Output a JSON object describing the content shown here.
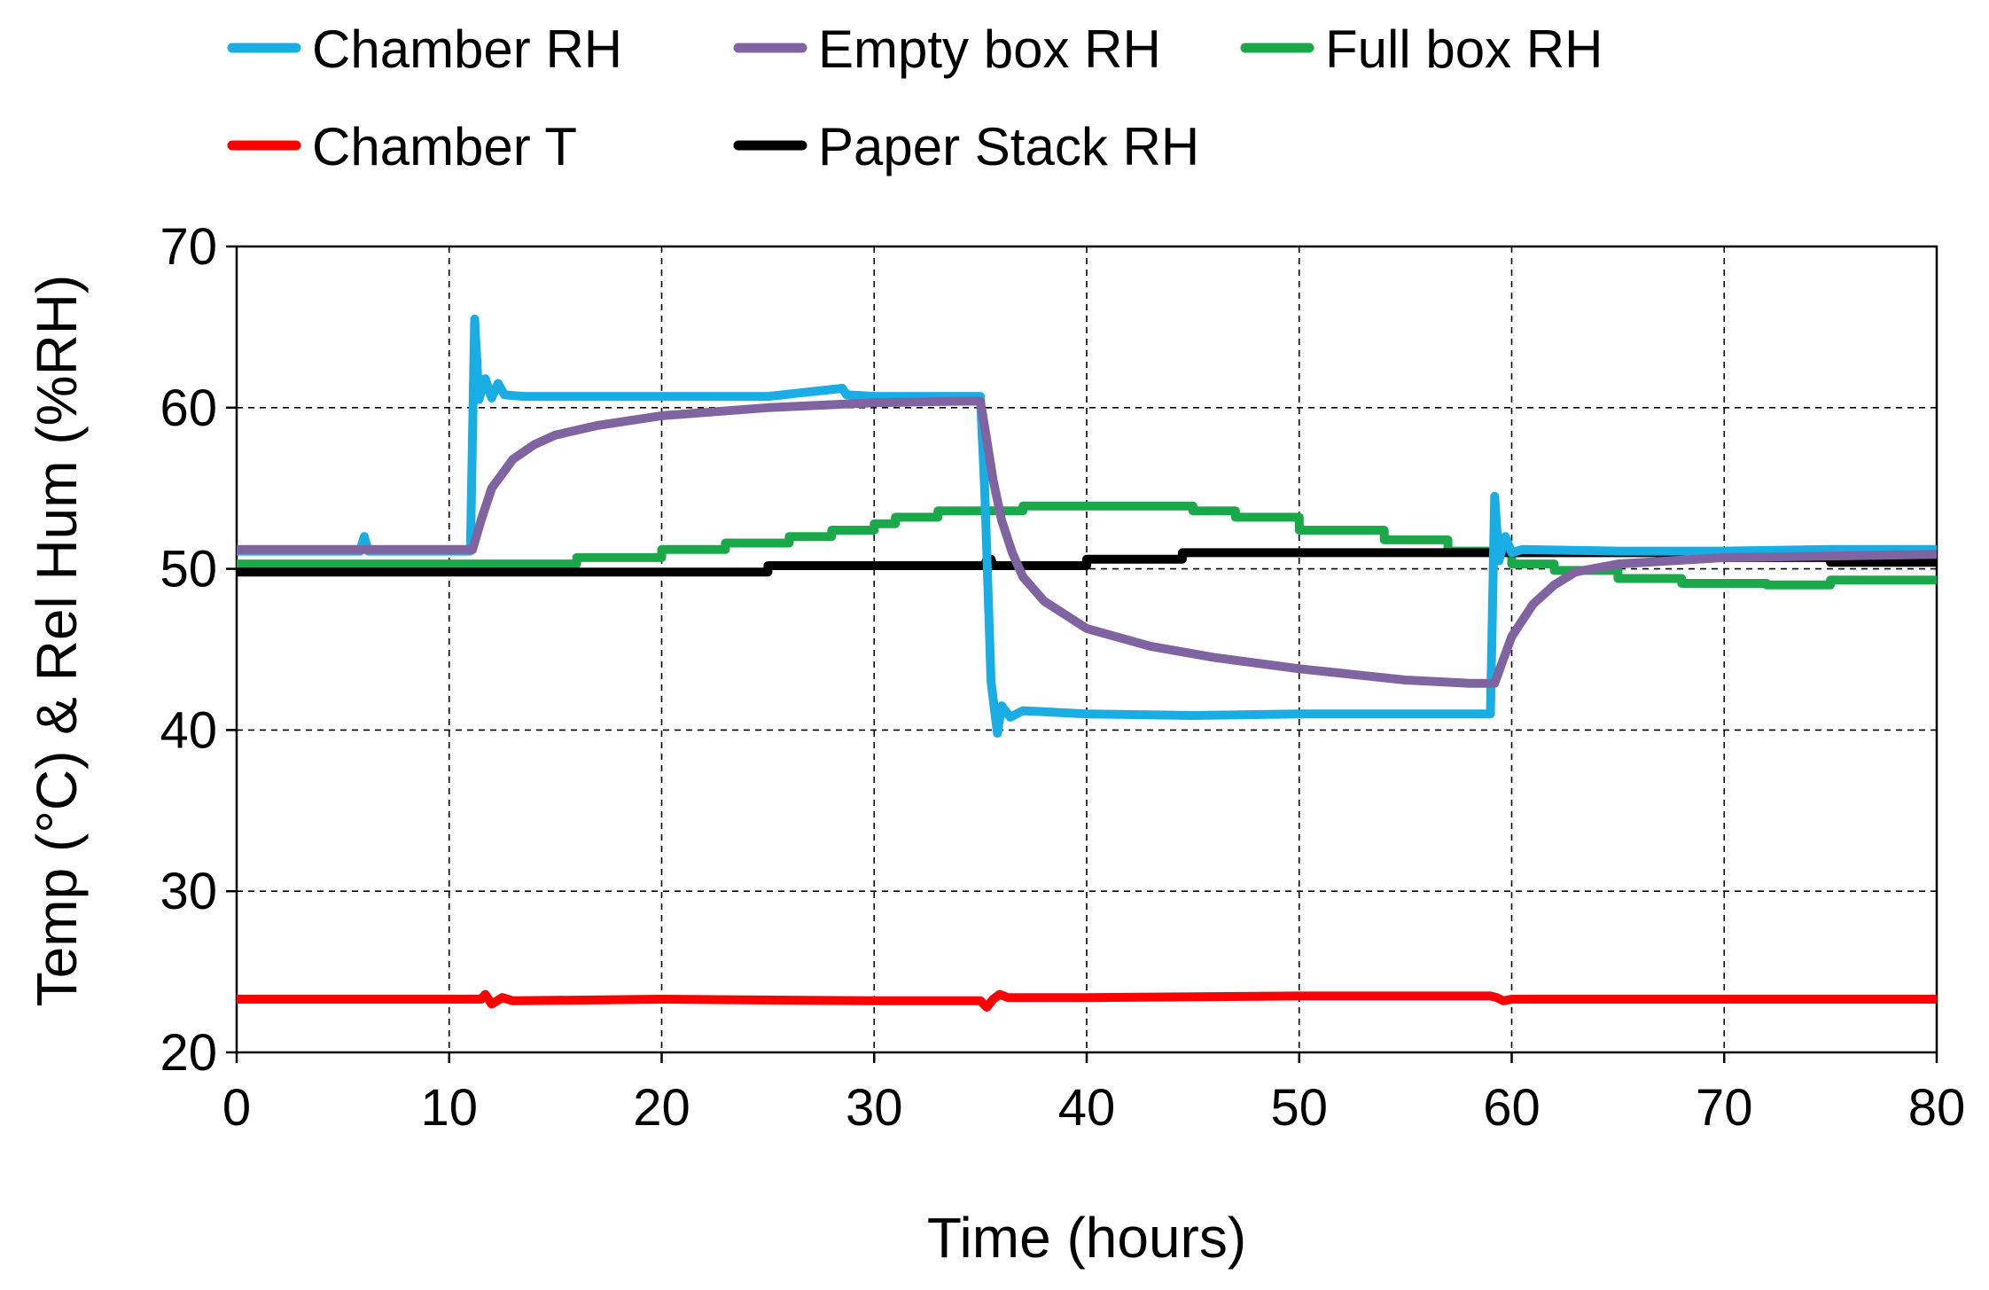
{
  "chart_data": {
    "type": "line",
    "xlabel": "Time (hours)",
    "ylabel": "Temp (°C) & Rel Hum (%RH)",
    "xlim": [
      0,
      80
    ],
    "ylim": [
      20,
      70
    ],
    "xticks": [
      0,
      10,
      20,
      30,
      40,
      50,
      60,
      70,
      80
    ],
    "yticks": [
      20,
      30,
      40,
      50,
      60,
      70
    ],
    "grid": "dashed, major x and y",
    "legend_position": "top",
    "series": [
      {
        "name": "Chamber RH",
        "color": "#1AADE4",
        "x": [
          0,
          5.8,
          6.0,
          6.2,
          11.0,
          11.2,
          11.4,
          11.7,
          12.0,
          12.3,
          12.6,
          13.5,
          20,
          25,
          28.5,
          28.7,
          30,
          35.0,
          35.2,
          35.5,
          35.8,
          36.0,
          36.4,
          37.0,
          40,
          45,
          50,
          55,
          59.0,
          59.2,
          59.4,
          59.7,
          60.0,
          60.5,
          65,
          70,
          75,
          80
        ],
        "y": [
          51.1,
          51.1,
          52.0,
          51.1,
          51.1,
          65.5,
          60.5,
          61.8,
          60.6,
          61.5,
          60.8,
          60.7,
          60.7,
          60.7,
          61.2,
          60.8,
          60.7,
          60.7,
          55.0,
          43.0,
          39.8,
          41.5,
          40.8,
          41.2,
          41.0,
          40.9,
          41.0,
          41.0,
          41.0,
          54.5,
          50.5,
          52.0,
          51.0,
          51.2,
          51.1,
          51.1,
          51.2,
          51.2
        ]
      },
      {
        "name": "Empty box RH",
        "color": "#8064A2",
        "x": [
          0,
          11.1,
          11.5,
          12,
          13,
          14,
          15,
          17,
          20,
          25,
          30,
          34,
          35.0,
          35.3,
          35.6,
          36,
          36.5,
          37,
          38,
          40,
          43,
          46,
          50,
          55,
          58,
          59.2,
          59.5,
          60,
          61,
          62,
          63,
          65,
          70,
          75,
          80
        ],
        "y": [
          51.2,
          51.2,
          53.0,
          55.0,
          56.8,
          57.7,
          58.3,
          58.9,
          59.5,
          60.0,
          60.3,
          60.4,
          60.4,
          58.0,
          55.5,
          53.0,
          51.0,
          49.5,
          48.0,
          46.3,
          45.2,
          44.5,
          43.8,
          43.1,
          42.9,
          42.9,
          44.0,
          45.8,
          47.8,
          49.0,
          49.8,
          50.3,
          50.7,
          50.8,
          50.9
        ]
      },
      {
        "name": "Full box RH",
        "color": "#1BA84A",
        "x": [
          0,
          16,
          16,
          20,
          20,
          23,
          23,
          26,
          26,
          28,
          28,
          30,
          30,
          31,
          31,
          33,
          33,
          37,
          37,
          45,
          45,
          47,
          47,
          50,
          50,
          54,
          54,
          57,
          57,
          60,
          60,
          62,
          62,
          65,
          65,
          68,
          68,
          72,
          72,
          75,
          75,
          80
        ],
        "y": [
          50.3,
          50.3,
          50.7,
          50.7,
          51.2,
          51.2,
          51.6,
          51.6,
          52.0,
          52.0,
          52.4,
          52.4,
          52.8,
          52.8,
          53.2,
          53.2,
          53.6,
          53.6,
          53.9,
          53.9,
          53.6,
          53.6,
          53.2,
          53.2,
          52.4,
          52.4,
          51.8,
          51.8,
          51.1,
          51.1,
          50.3,
          50.3,
          49.9,
          49.9,
          49.4,
          49.4,
          49.1,
          49.1,
          49.0,
          49.0,
          49.3,
          49.3
        ]
      },
      {
        "name": "Chamber T",
        "color": "#FF0000",
        "x": [
          0,
          11.5,
          11.7,
          12.0,
          12.5,
          13,
          20,
          30,
          35.0,
          35.3,
          35.6,
          35.9,
          36.3,
          37,
          40,
          50,
          59.0,
          59.3,
          59.6,
          60,
          70,
          80
        ],
        "y": [
          23.3,
          23.3,
          23.6,
          23.0,
          23.4,
          23.2,
          23.3,
          23.2,
          23.2,
          22.8,
          23.3,
          23.6,
          23.4,
          23.4,
          23.4,
          23.5,
          23.5,
          23.4,
          23.2,
          23.3,
          23.3,
          23.3
        ],
        "note": ""
      },
      {
        "name": "Paper Stack RH",
        "color": "#000000",
        "x": [
          0,
          25,
          25,
          35.2,
          35.3,
          35.5,
          35.6,
          40,
          40,
          44.5,
          44.5,
          67,
          67,
          75,
          75,
          80
        ],
        "y": [
          49.8,
          49.8,
          50.2,
          50.2,
          50.6,
          50.6,
          50.2,
          50.2,
          50.6,
          50.6,
          51.0,
          51.0,
          50.7,
          50.7,
          50.4,
          50.4
        ]
      }
    ]
  }
}
